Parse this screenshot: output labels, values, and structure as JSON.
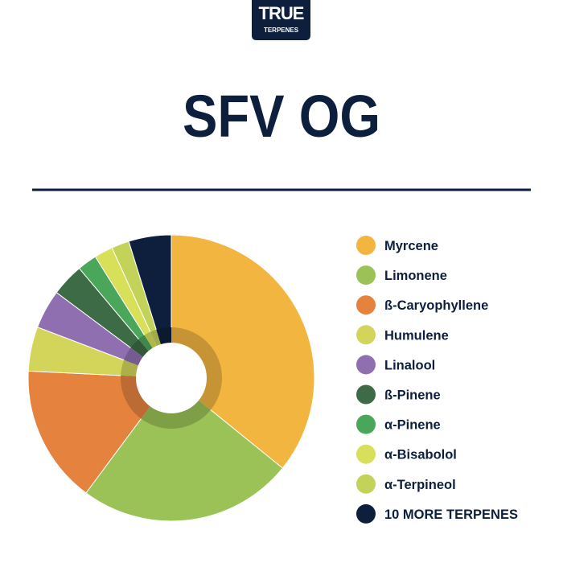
{
  "logo": {
    "line1": "TRUE",
    "line2": "TERPENES"
  },
  "chart_data": {
    "type": "pie",
    "title": "SFV OG",
    "categories": [
      "Myrcene",
      "Limonene",
      "ß-Caryophyllene",
      "Humulene",
      "Linalool",
      "ß-Pinene",
      "α-Pinene",
      "α-Bisabolol",
      "α-Terpineol",
      "10 MORE TERPENES"
    ],
    "values": [
      35.8,
      24.3,
      15.6,
      5.0,
      4.4,
      3.7,
      2.2,
      2.1,
      2.0,
      4.8
    ],
    "colors": [
      "#f2b53f",
      "#9bc257",
      "#e4823e",
      "#d3d55a",
      "#8f6fb0",
      "#3d6b45",
      "#4aa65a",
      "#d8df58",
      "#c3d35a",
      "#0d1f3c"
    ]
  }
}
